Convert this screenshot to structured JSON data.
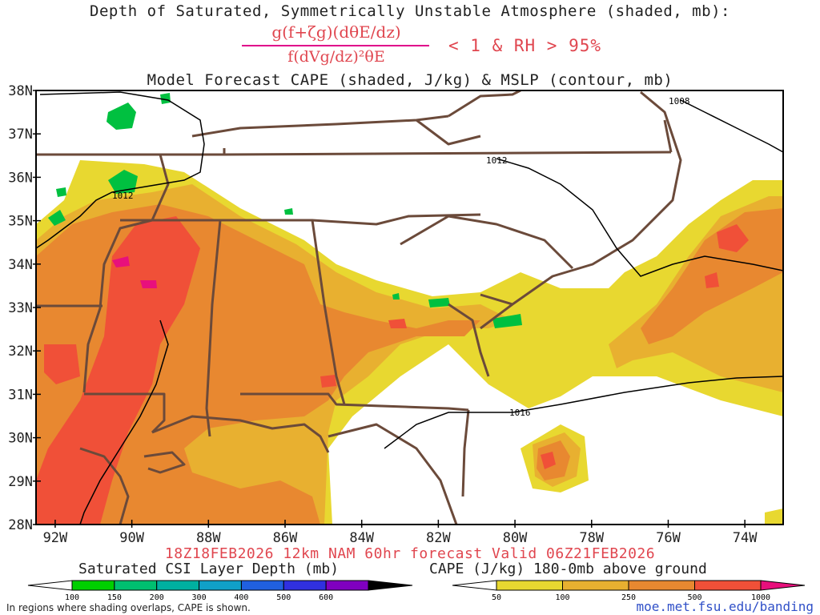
{
  "title": {
    "line1": "Depth of Saturated, Symmetrically Unstable Atmosphere (shaded, mb):",
    "fraction_numerator": "g(f+ζg)(dθE/dz)",
    "fraction_denominator": "f(dVg/dz)²θE",
    "condition": "< 1 & RH > 95%",
    "line2": "Model Forecast CAPE (shaded, J/kg) & MSLP (contour, mb)"
  },
  "footer": {
    "run": "18Z18FEB2026 12km NAM 60hr forecast Valid 06Z21FEB2026",
    "note": "In regions where shading overlaps, CAPE is shown.",
    "credit": "moe.met.fsu.edu/banding"
  },
  "axes": {
    "lat_labels": [
      "38N",
      "37N",
      "36N",
      "35N",
      "34N",
      "33N",
      "32N",
      "31N",
      "30N",
      "29N",
      "28N"
    ],
    "lon_labels": [
      "92W",
      "90W",
      "88W",
      "86W",
      "84W",
      "82W",
      "80W",
      "78W",
      "76W",
      "74W"
    ]
  },
  "isobars": [
    {
      "label": "1012"
    },
    {
      "label": "1012"
    },
    {
      "label": "1008"
    },
    {
      "label": "1016"
    }
  ],
  "legend_csi": {
    "title": "Saturated CSI Layer Depth (mb)",
    "ticks": [
      "100",
      "150",
      "200",
      "300",
      "400",
      "500",
      "600"
    ],
    "colors": [
      "#00d000",
      "#00c070",
      "#00b0a0",
      "#10a0c8",
      "#2060e0",
      "#3030e0",
      "#8000c0",
      "#000000"
    ]
  },
  "legend_cape": {
    "title": "CAPE (J/kg) 180-0mb above ground",
    "ticks": [
      "50",
      "100",
      "250",
      "500",
      "1000"
    ],
    "colors": [
      "#e8d830",
      "#e8b030",
      "#e88830",
      "#f05038",
      "#e8107c"
    ]
  },
  "colors": {
    "state_border": "#6b4a3a",
    "cape_50": "#e8d830",
    "cape_100": "#e8b030",
    "cape_250": "#e88830",
    "cape_500": "#f05038",
    "cape_1000": "#e8107c",
    "csi": "#00c040"
  }
}
